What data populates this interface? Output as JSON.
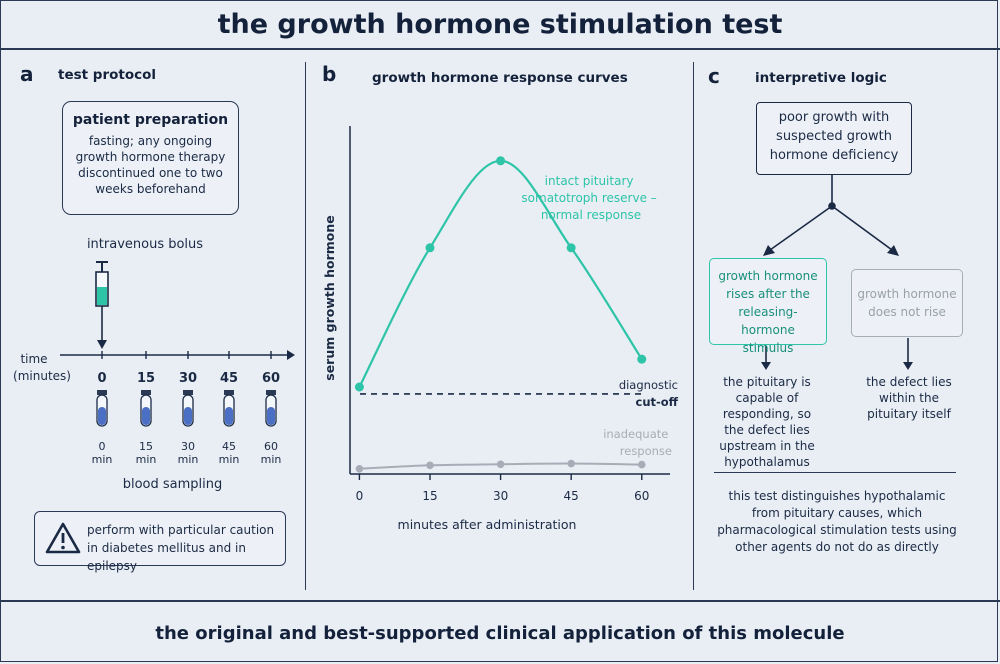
{
  "title": "the growth hormone stimulation test",
  "footer": "the original and best-supported clinical application of this molecule",
  "panel_a": {
    "letter": "a",
    "title": "test protocol",
    "prep_title": "patient preparation",
    "prep_text": "fasting; any ongoing growth hormone therapy discontinued one to two weeks beforehand",
    "bolus_label": "intravenous bolus",
    "time_label": "time",
    "time_unit": "(minutes)",
    "time_points": [
      "0",
      "15",
      "30",
      "45",
      "60"
    ],
    "tube_unit": "min",
    "sampling_label": "blood sampling",
    "caution": "perform with particular caution in diabetes mellitus and in epilepsy"
  },
  "panel_b": {
    "letter": "b",
    "title": "growth hormone response curves",
    "chart_data": {
      "type": "line",
      "xlabel": "minutes after administration",
      "ylabel": "serum growth hormone",
      "x": [
        0,
        15,
        30,
        45,
        60
      ],
      "xlim": [
        -2,
        66
      ],
      "ylim": [
        0,
        100
      ],
      "series": [
        {
          "name": "intact pituitary somatotroph reserve – normal response",
          "values": [
            25,
            65,
            90,
            65,
            33
          ],
          "color": "#2ec4a8"
        },
        {
          "name": "inadequate response",
          "values": [
            1.5,
            2.5,
            2.8,
            3,
            2.7
          ],
          "color": "#a7adb6"
        }
      ],
      "cutoff": {
        "label_1": "diagnostic",
        "label_2": "cut-off",
        "value": 23
      },
      "grid": false
    }
  },
  "panel_c": {
    "letter": "c",
    "title": "interpretive logic",
    "top_box": "poor growth with suspected growth hormone deficiency",
    "left_box": "growth hormone rises after the releasing-hormone stimulus",
    "right_box": "growth hormone does not rise",
    "left_result": "the pituitary is capable of responding, so the defect lies upstream in the hypothalamus",
    "right_result": "the defect lies within the pituitary itself",
    "summary": "this test distinguishes hypothalamic from pituitary causes, which pharmacological stimulation tests using other agents do not do as directly"
  },
  "colors": {
    "accent": "#2ec4a8",
    "ink": "#1b2a44",
    "muted": "#a7adb6",
    "tube_blue": "#4b6fc4"
  }
}
